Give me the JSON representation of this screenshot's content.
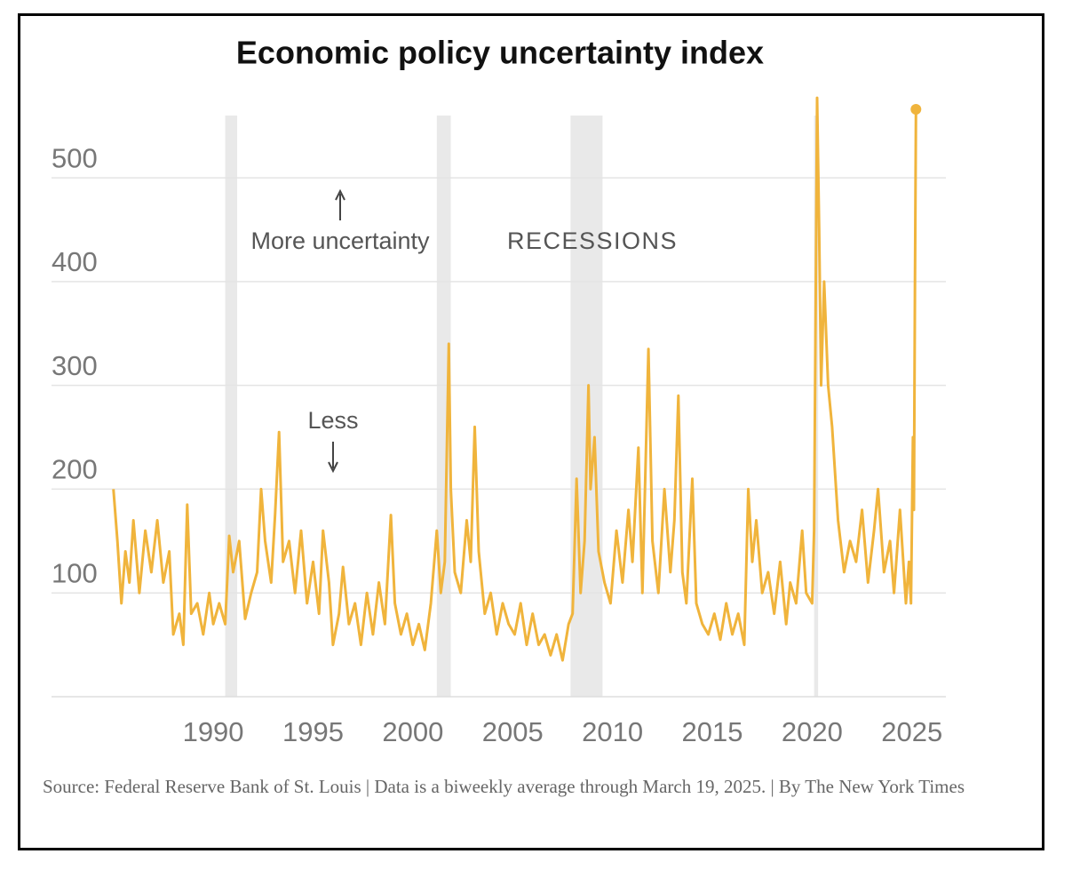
{
  "chart_data": {
    "type": "line",
    "title": "Economic policy uncertainty index",
    "annotations": {
      "more": "More uncertainty",
      "less": "Less",
      "recessions": "RECESSIONS"
    },
    "source": "Source: Federal Reserve Bank of St. Louis | Data is a biweekly average through March 19, 2025. | By The New York Times",
    "color": "#f0b43c",
    "recession_color": "#e9e9e9",
    "recessions": [
      [
        1990.6,
        1991.2
      ],
      [
        2001.2,
        2001.9
      ],
      [
        2007.9,
        2009.5
      ],
      [
        2020.1,
        2020.3
      ]
    ],
    "xlim": [
      1981.9,
      2026.7
    ],
    "xticks": [
      1990,
      1995,
      2000,
      2005,
      2010,
      2015,
      2020,
      2025
    ],
    "ylim": [
      0,
      560
    ],
    "yticks": [
      100,
      200,
      300,
      400,
      500
    ],
    "grid": true,
    "x": [
      1985.0,
      1985.2,
      1985.4,
      1985.6,
      1985.8,
      1986.0,
      1986.3,
      1986.6,
      1986.9,
      1987.2,
      1987.5,
      1987.8,
      1988.0,
      1988.3,
      1988.5,
      1988.7,
      1988.9,
      1989.2,
      1989.5,
      1989.8,
      1990.0,
      1990.3,
      1990.6,
      1990.8,
      1991.0,
      1991.3,
      1991.6,
      1991.9,
      1992.2,
      1992.4,
      1992.6,
      1992.9,
      1993.1,
      1993.3,
      1993.5,
      1993.8,
      1994.1,
      1994.4,
      1994.7,
      1995.0,
      1995.3,
      1995.5,
      1995.8,
      1996.0,
      1996.3,
      1996.5,
      1996.8,
      1997.1,
      1997.4,
      1997.7,
      1998.0,
      1998.3,
      1998.6,
      1998.9,
      1999.1,
      1999.4,
      1999.7,
      2000.0,
      2000.3,
      2000.6,
      2000.9,
      2001.2,
      2001.4,
      2001.6,
      2001.8,
      2001.9,
      2002.1,
      2002.4,
      2002.7,
      2002.9,
      2003.1,
      2003.3,
      2003.6,
      2003.9,
      2004.2,
      2004.5,
      2004.8,
      2005.1,
      2005.4,
      2005.7,
      2006.0,
      2006.3,
      2006.6,
      2006.9,
      2007.2,
      2007.5,
      2007.8,
      2008.0,
      2008.2,
      2008.4,
      2008.6,
      2008.8,
      2008.9,
      2009.1,
      2009.3,
      2009.6,
      2009.9,
      2010.2,
      2010.5,
      2010.8,
      2011.0,
      2011.3,
      2011.5,
      2011.8,
      2012.0,
      2012.3,
      2012.6,
      2012.9,
      2013.1,
      2013.3,
      2013.5,
      2013.7,
      2014.0,
      2014.2,
      2014.5,
      2014.8,
      2015.1,
      2015.4,
      2015.7,
      2016.0,
      2016.3,
      2016.6,
      2016.8,
      2017.0,
      2017.2,
      2017.5,
      2017.8,
      2018.1,
      2018.4,
      2018.7,
      2018.9,
      2019.2,
      2019.5,
      2019.7,
      2020.0,
      2020.1,
      2020.25,
      2020.35,
      2020.45,
      2020.6,
      2020.8,
      2021.0,
      2021.3,
      2021.6,
      2021.9,
      2022.2,
      2022.5,
      2022.8,
      2023.1,
      2023.3,
      2023.6,
      2023.9,
      2024.1,
      2024.4,
      2024.7,
      2024.85,
      2024.95,
      2025.05,
      2025.1,
      2025.15,
      2025.2
    ],
    "values": [
      200,
      150,
      90,
      140,
      110,
      170,
      100,
      160,
      120,
      170,
      110,
      140,
      60,
      80,
      50,
      185,
      80,
      90,
      60,
      100,
      70,
      90,
      70,
      155,
      120,
      150,
      75,
      100,
      120,
      200,
      150,
      110,
      175,
      255,
      130,
      150,
      100,
      160,
      90,
      130,
      80,
      160,
      110,
      50,
      80,
      125,
      70,
      90,
      50,
      100,
      60,
      110,
      70,
      175,
      90,
      60,
      80,
      50,
      70,
      45,
      90,
      160,
      100,
      130,
      340,
      200,
      120,
      100,
      170,
      130,
      260,
      140,
      80,
      100,
      60,
      90,
      70,
      60,
      90,
      50,
      80,
      50,
      60,
      40,
      60,
      35,
      70,
      80,
      210,
      100,
      150,
      300,
      200,
      250,
      140,
      110,
      90,
      160,
      110,
      180,
      130,
      240,
      100,
      335,
      150,
      100,
      200,
      120,
      170,
      290,
      120,
      90,
      210,
      90,
      70,
      60,
      80,
      55,
      90,
      60,
      80,
      50,
      200,
      130,
      170,
      100,
      120,
      80,
      130,
      70,
      110,
      90,
      160,
      100,
      90,
      160,
      577,
      450,
      300,
      400,
      300,
      260,
      170,
      120,
      150,
      130,
      180,
      110,
      160,
      200,
      120,
      150,
      100,
      180,
      90,
      130,
      90,
      250,
      180,
      400,
      566
    ]
  }
}
